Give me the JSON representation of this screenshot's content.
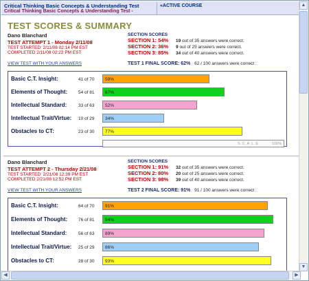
{
  "header": {
    "title": "Critical Thinking Basic Concepts & Understanding Test",
    "subtitle": "Critical Thinking Basic Concepts & Understanding Test -",
    "course": "«ACTIVE COURSE"
  },
  "page_title": "TEST SCORES & SUMMARY",
  "link_label": "VIEW TEST WITH YOUR ANSWERS",
  "section_scores_label": "SECTION SCORES",
  "scale": {
    "label": "SCALE",
    "max": "100%"
  },
  "colors": {
    "orange": "#ffa200",
    "green": "#11d11a",
    "pink": "#f5a3cf",
    "blue": "#9fcff7",
    "yellow": "#ffff22"
  },
  "attempts": [
    {
      "name": "Dano Blanchard",
      "title": "TEST ATTEMPT 1 - Monday 2/11/08",
      "started": "TEST STARTED: 2/11/08 02:14 PM EST",
      "completed": "COMPLETED 2/11/08 02:22 PM EST",
      "sections": [
        {
          "label": "SECTION 1: 54%",
          "correct": "19",
          "rest": "out of 35 answers were correct."
        },
        {
          "label": "SECTION 2: 36%",
          "correct": "9",
          "rest": "out of 25 answers were correct."
        },
        {
          "label": "SECTION 3: 85%",
          "correct": "34",
          "rest": "out of 40 answers were correct."
        }
      ],
      "final_label": "TEST 1 FINAL SCORE: 62%",
      "final_detail": "62 / 100 answers were correct :",
      "bars": [
        {
          "label": "Basic C.T. Insight:",
          "count": "41 of 70",
          "pct": "59%",
          "value": 59,
          "color": "orange"
        },
        {
          "label": "Elements of Thought:",
          "count": "54 of 81",
          "pct": "67%",
          "value": 67,
          "color": "green"
        },
        {
          "label": "Intellectual Standard:",
          "count": "33 of 63",
          "pct": "52%",
          "value": 52,
          "color": "pink"
        },
        {
          "label": "Intellectual Trait/Virtue:",
          "count": "10 of 29",
          "pct": "34%",
          "value": 34,
          "color": "blue"
        },
        {
          "label": "Obstacles to CT:",
          "count": "23 of 30",
          "pct": "77%",
          "value": 77,
          "color": "yellow"
        }
      ]
    },
    {
      "name": "Dano Blanchard",
      "title": "TEST ATTEMPT 2 - Thursday 2/21/08",
      "started": "TEST STARTED: 2/21/08 12:39 PM EST",
      "completed": "COMPLETED 2/21/08 12:52 PM EST",
      "sections": [
        {
          "label": "SECTION 1: 91%",
          "correct": "32",
          "rest": "out of 35 answers were correct."
        },
        {
          "label": "SECTION 2: 80%",
          "correct": "20",
          "rest": "out of 25 answers were correct."
        },
        {
          "label": "SECTION 3: 98%",
          "correct": "39",
          "rest": "out of 40 answers were correct."
        }
      ],
      "final_label": "TEST 2 FINAL SCORE: 91%",
      "final_detail": "91 / 100 answers were correct :",
      "bars": [
        {
          "label": "Basic C.T. Insight:",
          "count": "64 of 70",
          "pct": "91%",
          "value": 91,
          "color": "orange"
        },
        {
          "label": "Elements of Thought:",
          "count": "76 of 81",
          "pct": "94%",
          "value": 94,
          "color": "green"
        },
        {
          "label": "Intellectual Standard:",
          "count": "56 of 63",
          "pct": "89%",
          "value": 89,
          "color": "pink"
        },
        {
          "label": "Intellectual Trait/Virtue:",
          "count": "25 of 29",
          "pct": "86%",
          "value": 86,
          "color": "blue"
        },
        {
          "label": "Obstacles to CT:",
          "count": "28 of 30",
          "pct": "93%",
          "value": 93,
          "color": "yellow"
        }
      ]
    }
  ]
}
